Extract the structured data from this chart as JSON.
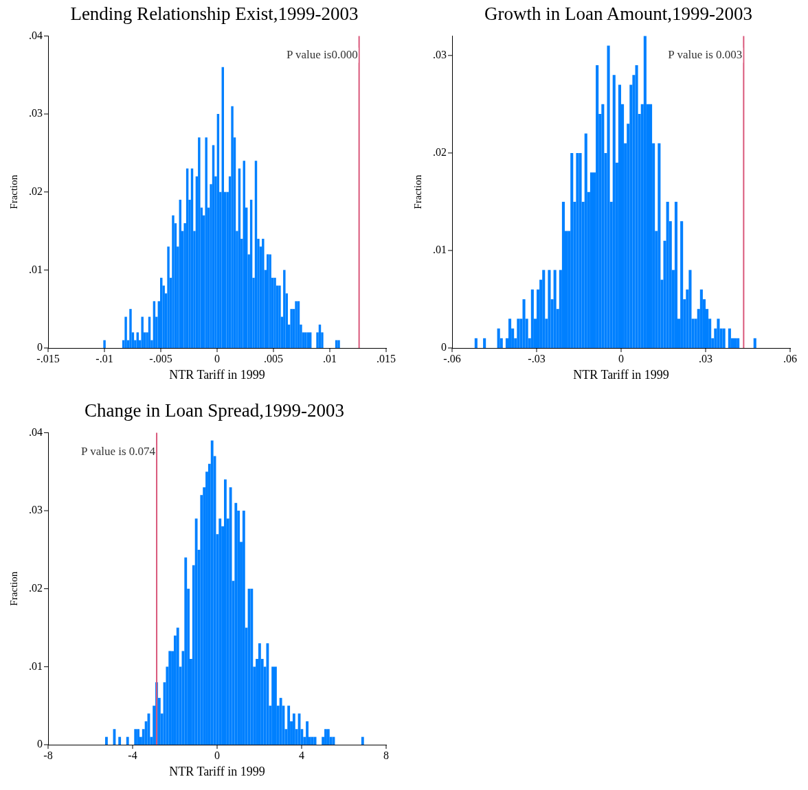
{
  "chart_data": [
    {
      "type": "histogram",
      "title": "Lending Relationship Exist,1999-2003",
      "xlabel": "NTR Tariff in 1999",
      "ylabel": "Fraction",
      "color": "#0080ff",
      "grid": false,
      "bins": [
        -0.0101,
        -0.00989,
        -0.00968,
        -0.00947,
        -0.00926,
        -0.00905,
        -0.00884,
        -0.00863,
        -0.00842,
        -0.00821,
        -0.008,
        -0.00779,
        -0.00758,
        -0.00737,
        -0.00716,
        -0.00695,
        -0.00674,
        -0.00653,
        -0.00632,
        -0.00611,
        -0.0059,
        -0.00569,
        -0.00548,
        -0.00527,
        -0.00506,
        -0.00485,
        -0.00464,
        -0.00443,
        -0.00422,
        -0.00401,
        -0.0038,
        -0.00359,
        -0.00338,
        -0.00317,
        -0.00296,
        -0.00275,
        -0.00254,
        -0.00233,
        -0.00212,
        -0.00191,
        -0.0017,
        -0.00149,
        -0.00128,
        -0.00107,
        -0.00086,
        -0.00065,
        -0.00044,
        -0.00023,
        -2e-05,
        0.00019,
        0.0004,
        0.00061,
        0.00082,
        0.00103,
        0.00124,
        0.00145,
        0.00166,
        0.00187,
        0.00208,
        0.00229,
        0.0025,
        0.00271,
        0.00292,
        0.00313,
        0.00334,
        0.00355,
        0.00376,
        0.00397,
        0.00418,
        0.00439,
        0.0046,
        0.00481,
        0.00502,
        0.00523,
        0.00544,
        0.00565,
        0.00586,
        0.00607,
        0.00628,
        0.00649,
        0.0067,
        0.00691,
        0.00712,
        0.00733,
        0.00754,
        0.00775,
        0.00796,
        0.00817,
        0.00838,
        0.00859,
        0.0088,
        0.00901,
        0.00922,
        0.00943,
        0.00964,
        0.00985,
        0.01006,
        0.01027,
        0.01048,
        0.01069,
        0.0109
      ],
      "values": [
        0.001,
        0,
        0,
        0,
        0,
        0,
        0,
        0,
        0.001,
        0.004,
        0.001,
        0.005,
        0.002,
        0.001,
        0.002,
        0.001,
        0.004,
        0.002,
        0.002,
        0.004,
        0.001,
        0.006,
        0.004,
        0.006,
        0.009,
        0.008,
        0.007,
        0.013,
        0.009,
        0.017,
        0.016,
        0.013,
        0.019,
        0.015,
        0.016,
        0.023,
        0.019,
        0.023,
        0.015,
        0.022,
        0.027,
        0.018,
        0.017,
        0.027,
        0.018,
        0.021,
        0.026,
        0.022,
        0.03,
        0.02,
        0.036,
        0.02,
        0.02,
        0.022,
        0.031,
        0.027,
        0.015,
        0.023,
        0.014,
        0.024,
        0.018,
        0.012,
        0.019,
        0.009,
        0.024,
        0.014,
        0.013,
        0.014,
        0.01,
        0.012,
        0.012,
        0.009,
        0.009,
        0.008,
        0.008,
        0.004,
        0.01,
        0.007,
        0.003,
        0.005,
        0.005,
        0.006,
        0.006,
        0.003,
        0.002,
        0.002,
        0.002,
        0.002,
        0,
        0,
        0.002,
        0.003,
        0.002,
        0,
        0,
        0,
        0,
        0,
        0.001,
        0.001
      ],
      "xlim": [
        -0.015,
        0.015
      ],
      "xticks": [
        {
          "value": -0.015,
          "label": "-.015"
        },
        {
          "value": -0.01,
          "label": "-.01"
        },
        {
          "value": -0.005,
          "label": "-.005"
        },
        {
          "value": 0,
          "label": "0"
        },
        {
          "value": 0.005,
          "label": ".005"
        },
        {
          "value": 0.01,
          "label": ".01"
        },
        {
          "value": 0.015,
          "label": ".015"
        }
      ],
      "ylim": [
        0,
        0.04
      ],
      "yticks": [
        {
          "value": 0,
          "label": "0"
        },
        {
          "value": 0.01,
          "label": ".01"
        },
        {
          "value": 0.02,
          "label": ".02"
        },
        {
          "value": 0.03,
          "label": ".03"
        },
        {
          "value": 0.04,
          "label": ".04"
        }
      ],
      "ref_lines": [
        {
          "axis": "x",
          "value": 0.0126,
          "label": "P value is0.000",
          "color": "#d9577a"
        }
      ]
    },
    {
      "type": "histogram",
      "title": "Growth in Loan Amount,1999-2003",
      "xlabel": "NTR Tariff in 1999",
      "ylabel": "Fraction",
      "color": "#0080ff",
      "grid": false,
      "bins": [
        -0.052,
        -0.051,
        -0.05,
        -0.049,
        -0.048,
        -0.047,
        -0.046,
        -0.045,
        -0.044,
        -0.043,
        -0.042,
        -0.041,
        -0.04,
        -0.039,
        -0.038,
        -0.037,
        -0.036,
        -0.035,
        -0.034,
        -0.033,
        -0.032,
        -0.031,
        -0.03,
        -0.029,
        -0.028,
        -0.027,
        -0.026,
        -0.025,
        -0.024,
        -0.023,
        -0.022,
        -0.021,
        -0.02,
        -0.019,
        -0.018,
        -0.017,
        -0.016,
        -0.015,
        -0.014,
        -0.013,
        -0.012,
        -0.011,
        -0.01,
        -0.009,
        -0.008,
        -0.007,
        -0.006,
        -0.005,
        -0.004,
        -0.003,
        -0.002,
        -0.001,
        0,
        0.001,
        0.002,
        0.003,
        0.004,
        0.005,
        0.006,
        0.007,
        0.008,
        0.009,
        0.01,
        0.011,
        0.012,
        0.013,
        0.014,
        0.015,
        0.016,
        0.017,
        0.018,
        0.019,
        0.02,
        0.021,
        0.022,
        0.023,
        0.024,
        0.025,
        0.026,
        0.027,
        0.028,
        0.029,
        0.03,
        0.031,
        0.032,
        0.033,
        0.034,
        0.035,
        0.036,
        0.037,
        0.038,
        0.039,
        0.04,
        0.041,
        0.042,
        0.043,
        0.044,
        0.045,
        0.046,
        0.047,
        0.048
      ],
      "values": [
        0.001,
        0,
        0,
        0.001,
        0,
        0,
        0,
        0,
        0.002,
        0.001,
        0,
        0.001,
        0.003,
        0.002,
        0.001,
        0.003,
        0.003,
        0.005,
        0.003,
        0.001,
        0.006,
        0.003,
        0.006,
        0.007,
        0.008,
        0.003,
        0.008,
        0.005,
        0.008,
        0.004,
        0.008,
        0.015,
        0.012,
        0.012,
        0.02,
        0.015,
        0.02,
        0.02,
        0.015,
        0.022,
        0.016,
        0.018,
        0.018,
        0.029,
        0.024,
        0.025,
        0.02,
        0.031,
        0.015,
        0.028,
        0.019,
        0.027,
        0.025,
        0.021,
        0.023,
        0.027,
        0.028,
        0.029,
        0.024,
        0.025,
        0.032,
        0.025,
        0.025,
        0.021,
        0.012,
        0.021,
        0.007,
        0.011,
        0.015,
        0.013,
        0.008,
        0.015,
        0.003,
        0.013,
        0.005,
        0.006,
        0.008,
        0.003,
        0.003,
        0.004,
        0.006,
        0.005,
        0.004,
        0.003,
        0.001,
        0.002,
        0.003,
        0.002,
        0.002,
        0,
        0.002,
        0.001,
        0.001,
        0.001,
        0,
        0,
        0,
        0,
        0,
        0.001
      ],
      "xlim": [
        -0.06,
        0.06
      ],
      "xticks": [
        {
          "value": -0.06,
          "label": "-.06"
        },
        {
          "value": -0.03,
          "label": "-.03"
        },
        0,
        {
          "value": 0.03,
          "label": ".03"
        },
        {
          "value": 0.06,
          "label": ".06"
        }
      ],
      "ylim": [
        0,
        0.032
      ],
      "yticks": [
        {
          "value": 0,
          "label": "0"
        },
        {
          "value": 0.01,
          "label": ".01"
        },
        {
          "value": 0.02,
          "label": ".02"
        },
        {
          "value": 0.03,
          "label": ".03"
        }
      ],
      "ref_lines": [
        {
          "axis": "x",
          "value": 0.0435,
          "label": "P value is 0.003",
          "color": "#d9577a"
        }
      ]
    },
    {
      "type": "histogram",
      "title": "Change in Loan Spread,1999-2003",
      "xlabel": "NTR Tariff in 1999",
      "ylabel": "Fraction",
      "color": "#0080ff",
      "grid": false,
      "bins": [
        -5.3,
        -5.175,
        -5.05,
        -4.925,
        -4.8,
        -4.675,
        -4.55,
        -4.425,
        -4.3,
        -4.175,
        -4.05,
        -3.925,
        -3.8,
        -3.675,
        -3.55,
        -3.425,
        -3.3,
        -3.175,
        -3.05,
        -2.925,
        -2.8,
        -2.675,
        -2.55,
        -2.425,
        -2.3,
        -2.175,
        -2.05,
        -1.925,
        -1.8,
        -1.675,
        -1.55,
        -1.425,
        -1.3,
        -1.175,
        -1.05,
        -0.925,
        -0.8,
        -0.675,
        -0.55,
        -0.425,
        -0.3,
        -0.175,
        -0.05,
        0.075,
        0.2,
        0.325,
        0.45,
        0.575,
        0.7,
        0.825,
        0.95,
        1.075,
        1.2,
        1.325,
        1.45,
        1.575,
        1.7,
        1.825,
        1.95,
        2.075,
        2.2,
        2.325,
        2.45,
        2.575,
        2.7,
        2.825,
        2.95,
        3.075,
        3.2,
        3.325,
        3.45,
        3.575,
        3.7,
        3.825,
        3.95,
        4.075,
        4.2,
        4.325,
        4.45,
        4.575,
        4.7,
        4.825,
        4.95,
        5.075,
        5.2,
        5.325,
        5.45,
        5.575,
        5.7,
        5.825,
        5.95,
        6.075,
        6.2,
        6.325,
        6.45,
        6.575,
        6.7,
        6.825,
        6.95
      ],
      "values": [
        0.001,
        0,
        0,
        0.002,
        0,
        0.001,
        0,
        0,
        0.001,
        0,
        0,
        0.002,
        0.002,
        0.001,
        0.002,
        0.003,
        0.004,
        0.001,
        0.005,
        0.008,
        0.006,
        0.004,
        0.008,
        0.01,
        0.012,
        0.012,
        0.014,
        0.015,
        0.01,
        0.012,
        0.024,
        0.02,
        0.011,
        0.023,
        0.029,
        0.025,
        0.032,
        0.033,
        0.035,
        0.036,
        0.039,
        0.037,
        0.027,
        0.029,
        0.028,
        0.034,
        0.029,
        0.033,
        0.021,
        0.031,
        0.03,
        0.026,
        0.03,
        0.015,
        0.02,
        0.02,
        0.01,
        0.011,
        0.013,
        0.011,
        0.01,
        0.013,
        0.005,
        0.01,
        0.01,
        0.005,
        0.006,
        0.005,
        0.002,
        0.005,
        0.003,
        0.004,
        0.002,
        0.004,
        0.002,
        0.001,
        0.003,
        0.001,
        0.001,
        0.001,
        0,
        0,
        0.001,
        0.002,
        0.002,
        0.001,
        0.001,
        0,
        0,
        0,
        0,
        0,
        0,
        0,
        0,
        0,
        0,
        0.001
      ],
      "xlim": [
        -8,
        8
      ],
      "xticks": [
        -8,
        -4,
        0,
        4,
        8
      ],
      "ylim": [
        0,
        0.04
      ],
      "yticks": [
        {
          "value": 0,
          "label": "0"
        },
        {
          "value": 0.01,
          "label": ".01"
        },
        {
          "value": 0.02,
          "label": ".02"
        },
        {
          "value": 0.03,
          "label": ".03"
        },
        {
          "value": 0.04,
          "label": ".04"
        }
      ],
      "ref_lines": [
        {
          "axis": "x",
          "value": -2.86,
          "label": "P value is 0.074",
          "color": "#d9577a"
        }
      ]
    }
  ]
}
